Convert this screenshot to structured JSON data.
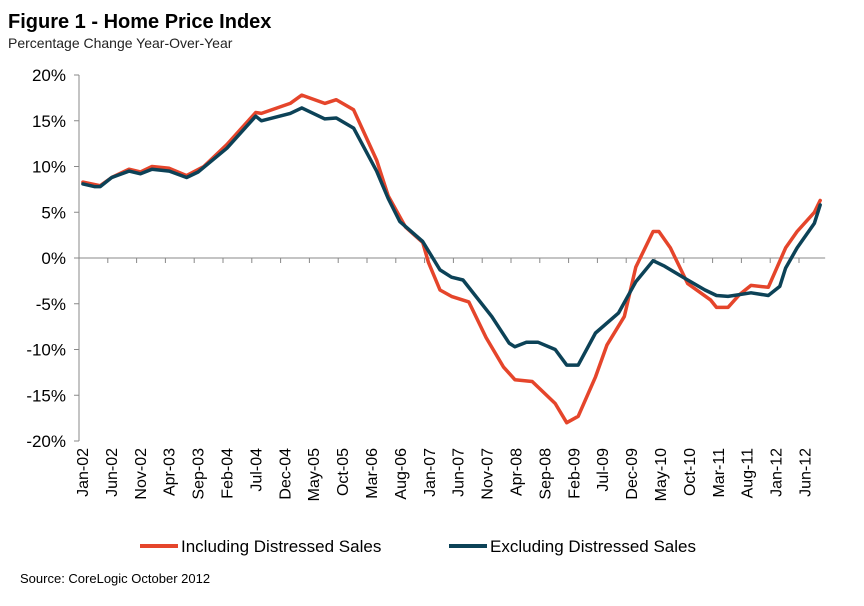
{
  "chart_data": {
    "type": "line",
    "title": "Figure 1 - Home Price Index",
    "subtitle": "Percentage Change Year-Over-Year",
    "xlabel": "",
    "ylabel": "",
    "ylim": [
      -20,
      20
    ],
    "y_ticks": [
      "20%",
      "15%",
      "10%",
      "5%",
      "0%",
      "-5%",
      "-10%",
      "-15%",
      "-20%"
    ],
    "y_tick_values": [
      20,
      15,
      10,
      5,
      0,
      -5,
      -10,
      -15,
      -20
    ],
    "x_range": [
      "2002-01",
      "2012-09"
    ],
    "x_ticks": [
      "Jan-02",
      "Jun-02",
      "Nov-02",
      "Apr-03",
      "Sep-03",
      "Feb-04",
      "Jul-04",
      "Dec-04",
      "May-05",
      "Oct-05",
      "Mar-06",
      "Aug-06",
      "Jan-07",
      "Jun-07",
      "Nov-07",
      "Apr-08",
      "Sep-08",
      "Feb-09",
      "Jul-09",
      "Dec-09",
      "May-10",
      "Oct-10",
      "Mar-11",
      "Aug-11",
      "Jan-12",
      "Jun-12"
    ],
    "grid": false,
    "legend_position": "bottom",
    "series": [
      {
        "name": "Including Distressed Sales",
        "color": "#e5452b",
        "x": [
          "2002-01",
          "2002-04",
          "2002-06",
          "2002-09",
          "2002-11",
          "2003-01",
          "2003-04",
          "2003-07",
          "2003-10",
          "2004-02",
          "2004-07",
          "2004-08",
          "2005-01",
          "2005-03",
          "2005-07",
          "2005-09",
          "2005-12",
          "2006-04",
          "2006-06",
          "2006-09",
          "2006-12",
          "2007-01",
          "2007-03",
          "2007-05",
          "2007-08",
          "2007-11",
          "2008-02",
          "2008-04",
          "2008-07",
          "2008-11",
          "2009-01",
          "2009-03",
          "2009-06",
          "2009-08",
          "2009-11",
          "2010-01",
          "2010-04",
          "2010-05",
          "2010-07",
          "2010-10",
          "2011-02",
          "2011-03",
          "2011-05",
          "2011-07",
          "2011-09",
          "2011-12",
          "2012-03",
          "2012-05",
          "2012-08",
          "2012-09"
        ],
        "y": [
          8.3,
          7.9,
          8.8,
          9.7,
          9.4,
          10.0,
          9.8,
          9.0,
          10.0,
          12.4,
          15.9,
          15.8,
          16.9,
          17.8,
          16.9,
          17.3,
          16.2,
          10.7,
          6.8,
          3.4,
          1.7,
          -0.5,
          -3.5,
          -4.2,
          -4.8,
          -8.7,
          -11.9,
          -13.3,
          -13.5,
          -15.9,
          -18.0,
          -17.3,
          -13.0,
          -9.5,
          -6.4,
          -1.0,
          2.9,
          2.9,
          1.1,
          -2.8,
          -4.6,
          -5.4,
          -5.4,
          -4.0,
          -3.0,
          -3.2,
          1.1,
          2.9,
          5.0,
          6.3
        ]
      },
      {
        "name": "Excluding Distressed Sales",
        "color": "#0c4257",
        "x": [
          "2002-01",
          "2002-03",
          "2002-04",
          "2002-06",
          "2002-09",
          "2002-11",
          "2003-01",
          "2003-04",
          "2003-07",
          "2003-09",
          "2004-02",
          "2004-07",
          "2004-08",
          "2005-01",
          "2005-03",
          "2005-07",
          "2005-09",
          "2005-12",
          "2006-04",
          "2006-06",
          "2006-08",
          "2006-12",
          "2007-03",
          "2007-05",
          "2007-07",
          "2007-12",
          "2008-03",
          "2008-04",
          "2008-06",
          "2008-08",
          "2008-11",
          "2009-01",
          "2009-03",
          "2009-06",
          "2009-10",
          "2010-01",
          "2010-04",
          "2010-06",
          "2010-10",
          "2011-01",
          "2011-03",
          "2011-05",
          "2011-09",
          "2011-12",
          "2012-02",
          "2012-03",
          "2012-05",
          "2012-08",
          "2012-09"
        ],
        "y": [
          8.1,
          7.8,
          7.8,
          8.8,
          9.5,
          9.2,
          9.7,
          9.5,
          8.8,
          9.4,
          12.0,
          15.5,
          15.0,
          15.8,
          16.4,
          15.2,
          15.3,
          14.2,
          9.5,
          6.5,
          4.0,
          1.8,
          -1.3,
          -2.1,
          -2.4,
          -6.4,
          -9.3,
          -9.7,
          -9.2,
          -9.2,
          -10.0,
          -11.7,
          -11.7,
          -8.2,
          -6.0,
          -2.6,
          -0.3,
          -0.9,
          -2.4,
          -3.5,
          -4.1,
          -4.2,
          -3.8,
          -4.1,
          -3.1,
          -1.1,
          1.1,
          3.8,
          5.8
        ]
      }
    ],
    "source": "Source: CoreLogic October 2012"
  }
}
